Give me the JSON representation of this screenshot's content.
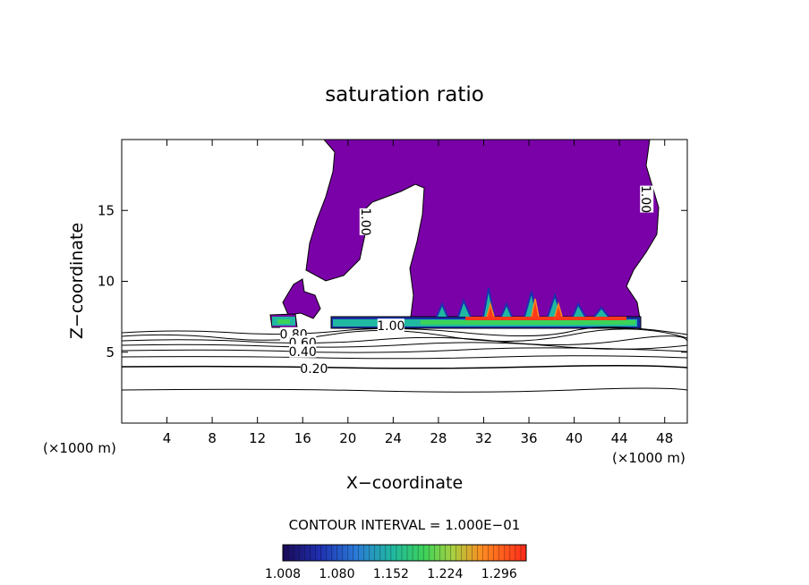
{
  "chart_data": {
    "type": "contour",
    "title": "saturation ratio",
    "xlabel": "X−coordinate",
    "ylabel": "Z−coordinate",
    "x_unit_left": "(×1000 m)",
    "x_unit_right": "(×1000 m)",
    "xlim": [
      0,
      50
    ],
    "ylim": [
      0,
      20
    ],
    "x_ticks": [
      4,
      8,
      12,
      16,
      20,
      24,
      28,
      32,
      36,
      40,
      44,
      48
    ],
    "y_ticks": [
      5,
      10,
      15
    ],
    "contour_interval_text": "CONTOUR INTERVAL = 1.000E−01",
    "contour_labels": [
      {
        "text": "1.00",
        "x": 21.5,
        "y": 14.2,
        "rotate": 90
      },
      {
        "text": "1.00",
        "x": 46.3,
        "y": 15.8,
        "rotate": 90
      },
      {
        "text": "1.00",
        "x": 23.8,
        "y": 6.8,
        "rotate": 0
      },
      {
        "text": "0.80",
        "x": 15.2,
        "y": 6.2,
        "rotate": 0
      },
      {
        "text": "0.60",
        "x": 16.0,
        "y": 5.6,
        "rotate": 0
      },
      {
        "text": "0.40",
        "x": 16.0,
        "y": 5.0,
        "rotate": 0
      },
      {
        "text": "0.20",
        "x": 17.0,
        "y": 3.8,
        "rotate": 0
      }
    ],
    "colorbar_ticks": [
      "1.008",
      "1.080",
      "1.152",
      "1.224",
      "1.296"
    ],
    "colorbar_range": [
      1.008,
      1.332
    ],
    "colors": {
      "supersat_fill": "#7a00a8",
      "low": "#1b0f5c",
      "mid": "#19c98a",
      "high": "#ff2010"
    }
  }
}
